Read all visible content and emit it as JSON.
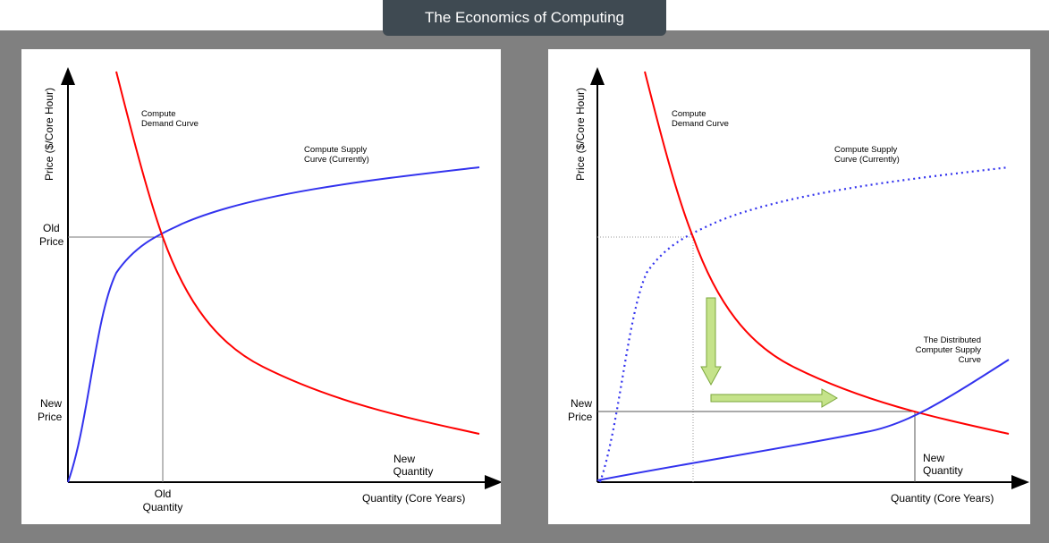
{
  "header": {
    "title": "The Economics of Computing"
  },
  "left_chart": {
    "ylabel": "Price ($/Core Hour)",
    "xlabel": "Quantity (Core Years)",
    "demand_label": [
      "Compute",
      "Demand Curve"
    ],
    "supply_label": [
      "Compute Supply",
      "Curve (Currently)"
    ],
    "old_price": [
      "Old",
      "Price"
    ],
    "new_price": [
      "New",
      "Price"
    ],
    "old_quantity": [
      "Old",
      "Quantity"
    ],
    "new_quantity": [
      "New",
      "Quantity"
    ]
  },
  "right_chart": {
    "ylabel": "Price ($/Core Hour)",
    "xlabel": "Quantity (Core Years)",
    "demand_label": [
      "Compute",
      "Demand Curve"
    ],
    "supply_label": [
      "Compute Supply",
      "Curve (Currently)"
    ],
    "distributed_label": [
      "The Distributed",
      "Computer Supply",
      "Curve"
    ],
    "new_price": [
      "New",
      "Price"
    ],
    "new_quantity": [
      "New",
      "Quantity"
    ]
  },
  "colors": {
    "demand": "#ff0000",
    "supply": "#3333ee",
    "arrow_fill": "#c5e38a",
    "arrow_stroke": "#7aa63a",
    "backdrop": "#808080",
    "title_bg": "#3f4a52"
  }
}
